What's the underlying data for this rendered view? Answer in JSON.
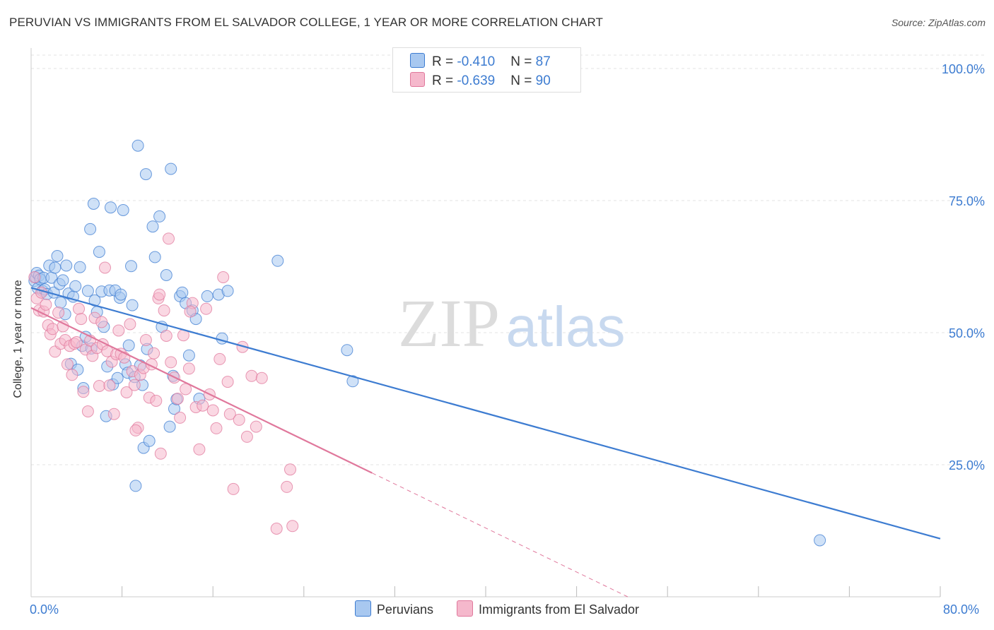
{
  "title": "PERUVIAN VS IMMIGRANTS FROM EL SALVADOR COLLEGE, 1 YEAR OR MORE CORRELATION CHART",
  "source": "Source: ZipAtlas.com",
  "watermark": {
    "zip": "ZIP",
    "atlas": "atlas"
  },
  "stats": [
    {
      "r_label": "R = ",
      "r_value": "-0.410",
      "n_label": "N = ",
      "n_value": "87",
      "color": "#a8c8f0"
    },
    {
      "r_label": "R = ",
      "r_value": "-0.639",
      "n_label": "N = ",
      "n_value": "90",
      "color": "#f5b8cc"
    }
  ],
  "chart_data": {
    "type": "scatter",
    "ylabel": "College, 1 year or more",
    "xlim": [
      0,
      80
    ],
    "ylim": [
      0,
      100
    ],
    "x_tick_labels": [
      "0.0%",
      "80.0%"
    ],
    "y_ticks": [
      25,
      50,
      75,
      100
    ],
    "y_tick_labels": [
      "25.0%",
      "50.0%",
      "75.0%",
      "100.0%"
    ],
    "grid": true,
    "legend_position": "bottom-center",
    "series": [
      {
        "name": "Peruvians",
        "fill": "#a8c8f0",
        "stroke": "#3d7cd1",
        "trend": {
          "x": [
            0,
            80
          ],
          "y": [
            58.5,
            11.0
          ],
          "dashed_from": null
        },
        "points": [
          [
            0.3,
            59.8
          ],
          [
            0.4,
            60.5
          ],
          [
            0.5,
            61.3
          ],
          [
            0.6,
            58.4
          ],
          [
            0.7,
            60.8
          ],
          [
            0.8,
            60.1
          ],
          [
            1.0,
            57.9
          ],
          [
            1.1,
            60.4
          ],
          [
            1.2,
            58.2
          ],
          [
            1.4,
            57.3
          ],
          [
            1.6,
            62.7
          ],
          [
            1.8,
            60.4
          ],
          [
            2.0,
            57.6
          ],
          [
            2.1,
            62.3
          ],
          [
            2.3,
            64.5
          ],
          [
            2.5,
            59.2
          ],
          [
            2.6,
            55.7
          ],
          [
            2.8,
            59.9
          ],
          [
            3.0,
            53.5
          ],
          [
            3.1,
            62.7
          ],
          [
            3.3,
            57.4
          ],
          [
            3.5,
            44.1
          ],
          [
            3.7,
            56.8
          ],
          [
            3.9,
            58.8
          ],
          [
            4.1,
            43.0
          ],
          [
            4.3,
            62.4
          ],
          [
            4.5,
            47.5
          ],
          [
            4.6,
            39.5
          ],
          [
            4.8,
            49.2
          ],
          [
            5.0,
            57.9
          ],
          [
            5.2,
            69.6
          ],
          [
            5.3,
            47.0
          ],
          [
            5.5,
            74.4
          ],
          [
            5.6,
            56.1
          ],
          [
            5.8,
            53.9
          ],
          [
            6.0,
            65.3
          ],
          [
            6.2,
            57.8
          ],
          [
            6.4,
            51.1
          ],
          [
            6.6,
            34.2
          ],
          [
            6.7,
            43.6
          ],
          [
            6.9,
            58.0
          ],
          [
            7.0,
            73.7
          ],
          [
            7.2,
            40.2
          ],
          [
            7.4,
            58.0
          ],
          [
            7.6,
            41.4
          ],
          [
            7.8,
            56.6
          ],
          [
            7.9,
            57.2
          ],
          [
            8.1,
            73.2
          ],
          [
            8.3,
            44.0
          ],
          [
            8.5,
            42.4
          ],
          [
            8.6,
            47.6
          ],
          [
            8.8,
            62.6
          ],
          [
            8.9,
            55.2
          ],
          [
            9.1,
            41.6
          ],
          [
            9.2,
            21.0
          ],
          [
            9.4,
            85.4
          ],
          [
            9.6,
            43.8
          ],
          [
            9.8,
            40.1
          ],
          [
            9.9,
            28.2
          ],
          [
            10.1,
            80.0
          ],
          [
            10.2,
            46.9
          ],
          [
            10.4,
            29.5
          ],
          [
            10.7,
            70.1
          ],
          [
            10.9,
            64.3
          ],
          [
            11.3,
            72.0
          ],
          [
            11.5,
            51.1
          ],
          [
            11.9,
            60.9
          ],
          [
            12.2,
            32.2
          ],
          [
            12.3,
            81.0
          ],
          [
            12.5,
            41.8
          ],
          [
            12.6,
            35.6
          ],
          [
            12.8,
            37.4
          ],
          [
            13.1,
            56.9
          ],
          [
            13.3,
            57.6
          ],
          [
            13.6,
            55.6
          ],
          [
            13.9,
            45.7
          ],
          [
            14.2,
            54.2
          ],
          [
            14.5,
            52.6
          ],
          [
            14.8,
            37.5
          ],
          [
            15.5,
            56.9
          ],
          [
            16.5,
            57.2
          ],
          [
            16.8,
            48.9
          ],
          [
            17.3,
            57.9
          ],
          [
            21.7,
            63.6
          ],
          [
            27.8,
            46.7
          ],
          [
            28.3,
            40.8
          ],
          [
            69.4,
            10.7
          ]
        ]
      },
      {
        "name": "Immigrants from El Salvador",
        "fill": "#f5b8cc",
        "stroke": "#e0789c",
        "trend": {
          "x": [
            0,
            52.5
          ],
          "y": [
            54.7,
            0
          ],
          "dashed_from": 30.0
        },
        "points": [
          [
            0.3,
            60.5
          ],
          [
            0.5,
            56.5
          ],
          [
            0.7,
            54.2
          ],
          [
            0.9,
            57.6
          ],
          [
            1.1,
            54.0
          ],
          [
            1.3,
            55.3
          ],
          [
            1.5,
            51.4
          ],
          [
            1.7,
            49.7
          ],
          [
            1.9,
            50.7
          ],
          [
            2.1,
            46.4
          ],
          [
            2.4,
            53.8
          ],
          [
            2.6,
            47.9
          ],
          [
            2.8,
            51.2
          ],
          [
            3.0,
            48.6
          ],
          [
            3.2,
            44.0
          ],
          [
            3.4,
            47.5
          ],
          [
            3.6,
            42.0
          ],
          [
            3.8,
            47.9
          ],
          [
            4.0,
            48.2
          ],
          [
            4.2,
            54.5
          ],
          [
            4.4,
            52.6
          ],
          [
            4.6,
            38.8
          ],
          [
            4.8,
            46.8
          ],
          [
            5.0,
            35.1
          ],
          [
            5.2,
            48.5
          ],
          [
            5.4,
            45.6
          ],
          [
            5.6,
            52.8
          ],
          [
            5.8,
            47.1
          ],
          [
            6.0,
            39.9
          ],
          [
            6.3,
            47.8
          ],
          [
            6.5,
            62.3
          ],
          [
            6.7,
            46.5
          ],
          [
            6.9,
            40.0
          ],
          [
            7.1,
            44.5
          ],
          [
            7.3,
            34.6
          ],
          [
            7.5,
            45.9
          ],
          [
            7.7,
            50.4
          ],
          [
            7.9,
            46.0
          ],
          [
            8.2,
            45.3
          ],
          [
            8.4,
            38.7
          ],
          [
            8.7,
            51.6
          ],
          [
            8.9,
            42.7
          ],
          [
            9.1,
            40.1
          ],
          [
            9.4,
            32.0
          ],
          [
            9.6,
            42.0
          ],
          [
            9.9,
            43.3
          ],
          [
            10.1,
            48.6
          ],
          [
            10.4,
            37.7
          ],
          [
            10.6,
            44.0
          ],
          [
            10.8,
            46.1
          ],
          [
            11.0,
            37.1
          ],
          [
            11.2,
            56.5
          ],
          [
            11.4,
            27.1
          ],
          [
            11.7,
            54.2
          ],
          [
            11.9,
            49.4
          ],
          [
            12.1,
            67.8
          ],
          [
            12.3,
            44.4
          ],
          [
            12.6,
            41.5
          ],
          [
            12.9,
            37.5
          ],
          [
            13.1,
            33.9
          ],
          [
            13.4,
            49.5
          ],
          [
            13.6,
            39.3
          ],
          [
            13.9,
            43.2
          ],
          [
            14.2,
            55.6
          ],
          [
            14.5,
            35.9
          ],
          [
            14.8,
            27.9
          ],
          [
            15.1,
            36.2
          ],
          [
            15.4,
            54.5
          ],
          [
            15.7,
            38.3
          ],
          [
            16.0,
            35.3
          ],
          [
            16.3,
            31.9
          ],
          [
            16.6,
            45.0
          ],
          [
            16.9,
            60.5
          ],
          [
            17.3,
            40.7
          ],
          [
            17.5,
            34.6
          ],
          [
            17.8,
            20.4
          ],
          [
            18.3,
            33.5
          ],
          [
            18.6,
            47.3
          ],
          [
            19.0,
            30.3
          ],
          [
            19.4,
            41.8
          ],
          [
            19.8,
            32.2
          ],
          [
            20.3,
            41.4
          ],
          [
            21.6,
            12.9
          ],
          [
            22.5,
            20.8
          ],
          [
            22.8,
            24.1
          ],
          [
            23.0,
            13.4
          ],
          [
            9.2,
            31.5
          ],
          [
            6.2,
            52.0
          ],
          [
            14.0,
            54.0
          ],
          [
            11.3,
            57.2
          ]
        ]
      }
    ]
  }
}
